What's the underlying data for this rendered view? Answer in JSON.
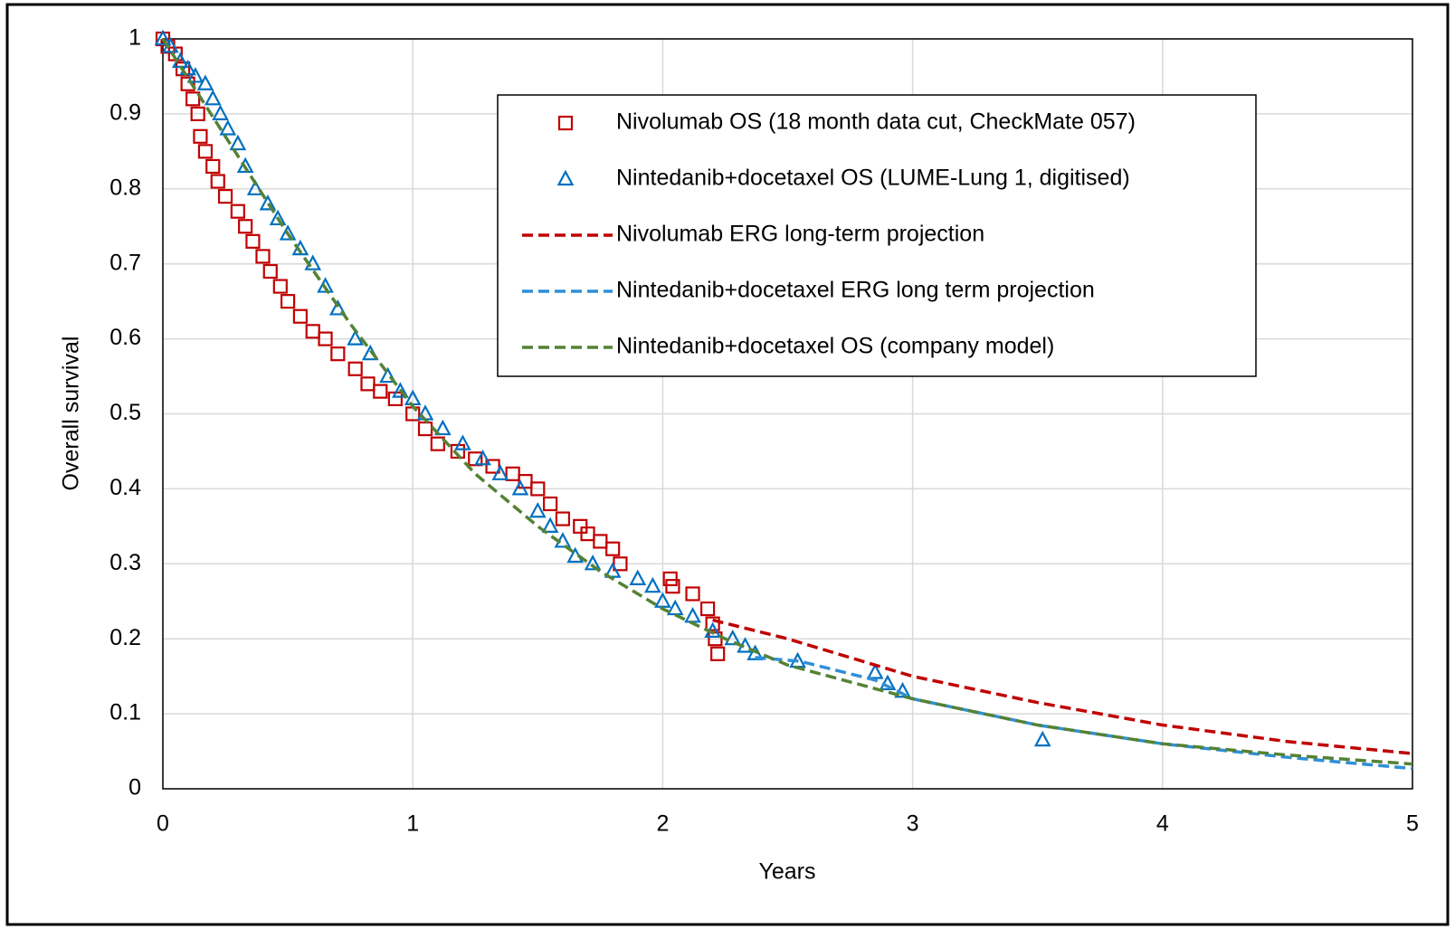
{
  "chart_data": {
    "type": "scatter",
    "xlabel": "Years",
    "ylabel": "Overall survival",
    "xlim": [
      0,
      5
    ],
    "ylim": [
      0,
      1
    ],
    "xticks": [
      0,
      1,
      2,
      3,
      4,
      5
    ],
    "yticks": [
      0,
      0.1,
      0.2,
      0.3,
      0.4,
      0.5,
      0.6,
      0.7,
      0.8,
      0.9,
      1
    ],
    "grid": true,
    "legend": "top-right",
    "series": [
      {
        "name": "Nivolumab OS (18 month data cut, CheckMate 057)",
        "type": "scatter",
        "marker": "square",
        "color": "#c00000",
        "x": [
          0,
          0.02,
          0.05,
          0.08,
          0.1,
          0.12,
          0.14,
          0.15,
          0.17,
          0.2,
          0.22,
          0.25,
          0.3,
          0.33,
          0.36,
          0.4,
          0.43,
          0.47,
          0.5,
          0.55,
          0.6,
          0.65,
          0.7,
          0.77,
          0.82,
          0.87,
          0.93,
          1.0,
          1.05,
          1.1,
          1.18,
          1.25,
          1.32,
          1.4,
          1.45,
          1.5,
          1.55,
          1.6,
          1.67,
          1.7,
          1.75,
          1.8,
          1.83,
          2.03,
          2.04,
          2.12,
          2.18,
          2.2,
          2.21,
          2.22
        ],
        "values": [
          1,
          0.99,
          0.98,
          0.96,
          0.94,
          0.92,
          0.9,
          0.87,
          0.85,
          0.83,
          0.81,
          0.79,
          0.77,
          0.75,
          0.73,
          0.71,
          0.69,
          0.67,
          0.65,
          0.63,
          0.61,
          0.6,
          0.58,
          0.56,
          0.54,
          0.53,
          0.52,
          0.5,
          0.48,
          0.46,
          0.45,
          0.44,
          0.43,
          0.42,
          0.41,
          0.4,
          0.38,
          0.36,
          0.35,
          0.34,
          0.33,
          0.32,
          0.3,
          0.28,
          0.27,
          0.26,
          0.24,
          0.22,
          0.2,
          0.18
        ]
      },
      {
        "name": "Nintedanib+docetaxel OS (LUME-Lung 1, digitised)",
        "type": "scatter",
        "marker": "triangle",
        "color": "#0070c0",
        "x": [
          0,
          0.03,
          0.07,
          0.1,
          0.13,
          0.17,
          0.2,
          0.23,
          0.26,
          0.3,
          0.33,
          0.37,
          0.42,
          0.46,
          0.5,
          0.55,
          0.6,
          0.65,
          0.7,
          0.77,
          0.83,
          0.9,
          0.95,
          1.0,
          1.05,
          1.12,
          1.2,
          1.28,
          1.35,
          1.43,
          1.5,
          1.55,
          1.6,
          1.65,
          1.72,
          1.8,
          1.9,
          1.96,
          2.0,
          2.05,
          2.12,
          2.2,
          2.28,
          2.33,
          2.37,
          2.54,
          2.85,
          2.9,
          2.96,
          3.52
        ],
        "values": [
          1,
          0.99,
          0.97,
          0.96,
          0.95,
          0.94,
          0.92,
          0.9,
          0.88,
          0.86,
          0.83,
          0.8,
          0.78,
          0.76,
          0.74,
          0.72,
          0.7,
          0.67,
          0.64,
          0.6,
          0.58,
          0.55,
          0.53,
          0.52,
          0.5,
          0.48,
          0.46,
          0.44,
          0.42,
          0.4,
          0.37,
          0.35,
          0.33,
          0.31,
          0.3,
          0.29,
          0.28,
          0.27,
          0.25,
          0.24,
          0.23,
          0.21,
          0.2,
          0.19,
          0.18,
          0.17,
          0.155,
          0.14,
          0.13,
          0.065
        ]
      },
      {
        "name": "Nivolumab ERG long-term projection",
        "type": "line",
        "line_style": "dashed",
        "color": "#c00000",
        "x": [
          2.2,
          2.5,
          3,
          3.5,
          4,
          4.5,
          5
        ],
        "values": [
          0.225,
          0.2,
          0.15,
          0.115,
          0.085,
          0.063,
          0.047
        ]
      },
      {
        "name": "Nintedanib+docetaxel ERG long term projection",
        "type": "line",
        "line_style": "dashed",
        "color": "#2e8fd8",
        "x": [
          2.37,
          2.55,
          2.85,
          3,
          3.5,
          4,
          4.5,
          5
        ],
        "values": [
          0.175,
          0.17,
          0.145,
          0.12,
          0.085,
          0.06,
          0.042,
          0.027
        ]
      },
      {
        "name": "Nintedanib+docetaxel OS (company model)",
        "type": "line",
        "line_style": "dashed",
        "color": "#548235",
        "x": [
          0,
          0.25,
          0.5,
          0.75,
          1,
          1.25,
          1.5,
          1.75,
          2,
          2.25,
          2.5,
          3,
          3.5,
          4,
          4.5,
          5
        ],
        "values": [
          1,
          0.87,
          0.74,
          0.62,
          0.51,
          0.42,
          0.35,
          0.29,
          0.24,
          0.2,
          0.165,
          0.12,
          0.085,
          0.06,
          0.045,
          0.033
        ]
      }
    ]
  }
}
